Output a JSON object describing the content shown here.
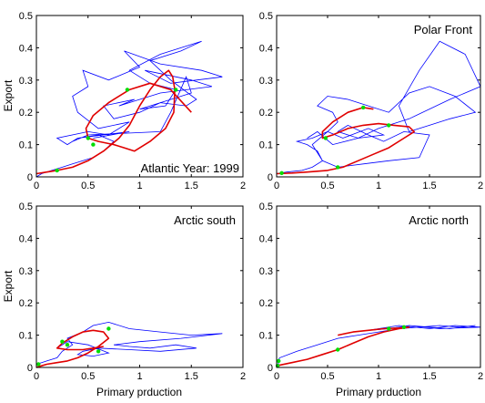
{
  "figure": {
    "panels": [
      {
        "id": "atlantic",
        "annotation": "Atlantic  Year: 1999",
        "ylabel": "Export",
        "xlabel": ""
      },
      {
        "id": "polar-front",
        "annotation": "Polar Front",
        "ylabel": "",
        "xlabel": ""
      },
      {
        "id": "arctic-south",
        "annotation": "Arctic south",
        "ylabel": "Export",
        "xlabel": "Primary prduction"
      },
      {
        "id": "arctic-north",
        "annotation": "Arctic north",
        "ylabel": "",
        "xlabel": "Primary prduction"
      }
    ],
    "colors": {
      "noisy": "#0000ff",
      "model": "#e00000",
      "marker": "#00dd00",
      "axis": "#000000",
      "background": "#ffffff"
    }
  },
  "chart_data": [
    {
      "type": "line",
      "annotation": "Atlantic  Year: 1999",
      "xlabel": "",
      "ylabel": "Export",
      "xlim": [
        0,
        2
      ],
      "ylim": [
        0,
        0.5
      ],
      "xticks": [
        0,
        0.5,
        1,
        1.5,
        2
      ],
      "yticks": [
        0,
        0.1,
        0.2,
        0.3,
        0.4,
        0.5
      ],
      "xtick_labels": [
        "0",
        "0.5",
        "1",
        "1.5",
        "2"
      ],
      "ytick_labels": [
        "0",
        "0.1",
        "0.2",
        "0.3",
        "0.4",
        "0.5"
      ],
      "noisy_series": {
        "x": [
          0.0,
          0.05,
          0.15,
          0.25,
          0.35,
          0.45,
          0.55,
          0.65,
          0.75,
          0.6,
          0.4,
          0.3,
          0.2,
          0.5,
          0.7,
          0.9,
          0.6,
          0.4,
          0.35,
          0.5,
          0.45,
          0.7,
          1.0,
          0.85,
          1.2,
          1.6,
          1.8,
          1.3,
          1.05,
          1.5,
          1.7,
          1.2,
          0.8,
          0.95,
          0.65,
          0.75,
          1.0,
          1.2,
          1.45,
          1.55,
          1.3,
          1.1,
          1.4,
          1.6,
          1.2,
          0.9,
          1.1,
          1.35,
          1.25,
          1.0,
          1.5,
          1.45,
          1.3,
          1.2,
          0.5,
          0.35,
          0.4,
          0.9,
          0.55
        ],
        "y": [
          0.0,
          0.01,
          0.02,
          0.03,
          0.04,
          0.05,
          0.06,
          0.08,
          0.11,
          0.13,
          0.12,
          0.1,
          0.12,
          0.14,
          0.13,
          0.17,
          0.15,
          0.2,
          0.25,
          0.28,
          0.33,
          0.3,
          0.34,
          0.39,
          0.35,
          0.33,
          0.31,
          0.29,
          0.33,
          0.3,
          0.28,
          0.26,
          0.22,
          0.24,
          0.22,
          0.18,
          0.2,
          0.23,
          0.22,
          0.24,
          0.3,
          0.36,
          0.39,
          0.42,
          0.38,
          0.33,
          0.29,
          0.27,
          0.22,
          0.21,
          0.26,
          0.31,
          0.2,
          0.14,
          0.13,
          0.11,
          0.12,
          0.14,
          0.12
        ]
      },
      "model_curve": {
        "x": [
          0.0,
          0.1,
          0.2,
          0.35,
          0.5,
          0.65,
          0.8,
          0.9,
          1.0,
          1.1,
          1.2,
          1.28,
          1.32,
          1.34,
          1.33,
          1.25,
          1.1,
          0.95,
          0.85,
          0.75,
          0.6,
          0.5,
          0.48,
          0.55,
          0.7,
          0.9,
          1.1,
          1.3,
          1.5
        ],
        "y": [
          0.01,
          0.015,
          0.02,
          0.03,
          0.05,
          0.08,
          0.12,
          0.16,
          0.22,
          0.27,
          0.31,
          0.33,
          0.31,
          0.27,
          0.2,
          0.15,
          0.11,
          0.08,
          0.09,
          0.1,
          0.11,
          0.12,
          0.15,
          0.19,
          0.23,
          0.27,
          0.29,
          0.27,
          0.2
        ]
      },
      "markers": {
        "x": [
          0.2,
          0.5,
          0.88,
          1.35,
          0.55
        ],
        "y": [
          0.02,
          0.12,
          0.27,
          0.27,
          0.1
        ]
      }
    },
    {
      "type": "line",
      "annotation": "Polar Front",
      "xlabel": "",
      "ylabel": "",
      "xlim": [
        0,
        2
      ],
      "ylim": [
        0,
        0.5
      ],
      "xticks": [
        0,
        0.5,
        1,
        1.5,
        2
      ],
      "yticks": [
        0,
        0.1,
        0.2,
        0.3,
        0.4,
        0.5
      ],
      "xtick_labels": [
        "0",
        "0.5",
        "1",
        "1.5",
        "2"
      ],
      "ytick_labels": [
        "0",
        "0.1",
        "0.2",
        "0.3",
        "0.4",
        "0.5"
      ],
      "noisy_series": {
        "x": [
          0.0,
          0.1,
          0.25,
          0.35,
          0.45,
          0.4,
          0.3,
          0.2,
          0.35,
          0.5,
          0.6,
          0.55,
          0.4,
          0.5,
          0.7,
          0.9,
          1.1,
          1.3,
          1.5,
          1.75,
          1.95,
          1.7,
          1.5,
          1.3,
          1.2,
          1.4,
          1.6,
          1.85,
          2.0,
          1.7,
          1.3,
          1.0,
          0.8,
          0.6,
          0.7,
          0.9,
          1.05,
          1.25,
          1.5,
          1.4,
          1.1,
          0.85,
          0.6,
          0.45,
          0.35,
          0.5,
          0.65,
          0.9,
          1.05,
          0.8,
          0.55,
          0.4,
          0.3
        ],
        "y": [
          0.01,
          0.015,
          0.02,
          0.03,
          0.05,
          0.08,
          0.1,
          0.11,
          0.12,
          0.14,
          0.17,
          0.2,
          0.22,
          0.25,
          0.24,
          0.22,
          0.2,
          0.26,
          0.28,
          0.25,
          0.2,
          0.18,
          0.16,
          0.14,
          0.22,
          0.33,
          0.42,
          0.38,
          0.28,
          0.24,
          0.18,
          0.15,
          0.12,
          0.14,
          0.16,
          0.13,
          0.11,
          0.14,
          0.13,
          0.06,
          0.05,
          0.04,
          0.03,
          0.05,
          0.1,
          0.14,
          0.12,
          0.15,
          0.13,
          0.12,
          0.1,
          0.14,
          0.12
        ]
      },
      "model_curve": {
        "x": [
          0.0,
          0.15,
          0.3,
          0.5,
          0.65,
          0.8,
          0.95,
          1.1,
          1.25,
          1.35,
          1.3,
          1.15,
          1.0,
          0.85,
          0.7,
          0.55,
          0.45,
          0.45,
          0.55,
          0.7,
          0.85,
          0.95
        ],
        "y": [
          0.01,
          0.012,
          0.015,
          0.02,
          0.03,
          0.05,
          0.07,
          0.09,
          0.12,
          0.14,
          0.155,
          0.16,
          0.165,
          0.16,
          0.15,
          0.13,
          0.12,
          0.14,
          0.17,
          0.2,
          0.215,
          0.21
        ]
      },
      "markers": {
        "x": [
          0.05,
          0.6,
          0.85,
          1.1,
          0.48
        ],
        "y": [
          0.012,
          0.03,
          0.215,
          0.16,
          0.12
        ]
      }
    },
    {
      "type": "line",
      "annotation": "Arctic south",
      "xlabel": "Primary prduction",
      "ylabel": "Export",
      "xlim": [
        0,
        2
      ],
      "ylim": [
        0,
        0.5
      ],
      "xticks": [
        0,
        0.5,
        1,
        1.5,
        2
      ],
      "yticks": [
        0,
        0.1,
        0.2,
        0.3,
        0.4,
        0.5
      ],
      "xtick_labels": [
        "0",
        "0.5",
        "1",
        "1.5",
        "2"
      ],
      "ytick_labels": [
        "0",
        "0.1",
        "0.2",
        "0.3",
        "0.4",
        "0.5"
      ],
      "noisy_series": {
        "x": [
          0.0,
          0.05,
          0.1,
          0.2,
          0.25,
          0.35,
          0.3,
          0.45,
          0.55,
          0.7,
          0.9,
          1.2,
          1.5,
          1.8,
          1.4,
          1.0,
          0.75,
          0.9,
          1.1,
          1.35,
          1.55,
          1.2,
          0.9,
          0.6,
          0.45,
          0.4,
          0.55,
          0.7,
          0.5,
          0.3,
          0.2
        ],
        "y": [
          0.01,
          0.015,
          0.02,
          0.03,
          0.05,
          0.07,
          0.09,
          0.11,
          0.13,
          0.14,
          0.12,
          0.11,
          0.1,
          0.105,
          0.09,
          0.08,
          0.07,
          0.065,
          0.06,
          0.07,
          0.06,
          0.05,
          0.055,
          0.06,
          0.05,
          0.04,
          0.035,
          0.045,
          0.07,
          0.08,
          0.06
        ]
      },
      "model_curve": {
        "x": [
          0.0,
          0.05,
          0.1,
          0.2,
          0.3,
          0.4,
          0.5,
          0.6,
          0.7,
          0.65,
          0.55,
          0.45,
          0.35,
          0.25,
          0.2,
          0.3,
          0.45,
          0.55,
          0.65
        ],
        "y": [
          0.0,
          0.005,
          0.01,
          0.015,
          0.02,
          0.03,
          0.045,
          0.065,
          0.09,
          0.11,
          0.115,
          0.11,
          0.095,
          0.075,
          0.06,
          0.055,
          0.055,
          0.06,
          0.065
        ]
      },
      "markers": {
        "x": [
          0.02,
          0.3,
          0.7,
          0.6,
          0.25
        ],
        "y": [
          0.01,
          0.07,
          0.12,
          0.05,
          0.08
        ]
      }
    },
    {
      "type": "line",
      "annotation": "Arctic north",
      "xlabel": "Primary prduction",
      "ylabel": "",
      "xlim": [
        0,
        2
      ],
      "ylim": [
        0,
        0.5
      ],
      "xticks": [
        0,
        0.5,
        1,
        1.5,
        2
      ],
      "yticks": [
        0,
        0.1,
        0.2,
        0.3,
        0.4,
        0.5
      ],
      "xtick_labels": [
        "0",
        "0.5",
        "1",
        "1.5",
        "2"
      ],
      "ytick_labels": [
        "0",
        "0.1",
        "0.2",
        "0.3",
        "0.4",
        "0.5"
      ],
      "noisy_series": {
        "x": [
          0.0,
          0.02,
          0.01,
          0.03,
          0.2,
          0.4,
          0.6,
          0.8,
          1.0,
          1.2,
          1.4,
          1.6,
          1.8,
          1.95,
          1.7,
          1.5,
          1.3,
          1.1,
          0.9,
          1.2,
          1.5,
          1.75,
          2.0,
          1.6,
          1.3
        ],
        "y": [
          0.0,
          0.01,
          0.02,
          0.03,
          0.05,
          0.07,
          0.09,
          0.1,
          0.11,
          0.12,
          0.125,
          0.13,
          0.125,
          0.13,
          0.12,
          0.125,
          0.13,
          0.12,
          0.115,
          0.13,
          0.12,
          0.13,
          0.125,
          0.12,
          0.13
        ]
      },
      "model_curve": {
        "x": [
          0.0,
          0.15,
          0.3,
          0.45,
          0.6,
          0.75,
          0.9,
          1.05,
          1.2,
          1.3,
          1.2,
          1.05,
          0.9,
          0.75,
          0.6
        ],
        "y": [
          0.005,
          0.015,
          0.025,
          0.04,
          0.055,
          0.075,
          0.095,
          0.11,
          0.12,
          0.125,
          0.122,
          0.12,
          0.115,
          0.11,
          0.1
        ]
      },
      "markers": {
        "x": [
          0.01,
          0.02,
          0.6,
          1.1,
          1.25
        ],
        "y": [
          0.005,
          0.02,
          0.055,
          0.12,
          0.125
        ]
      }
    }
  ]
}
